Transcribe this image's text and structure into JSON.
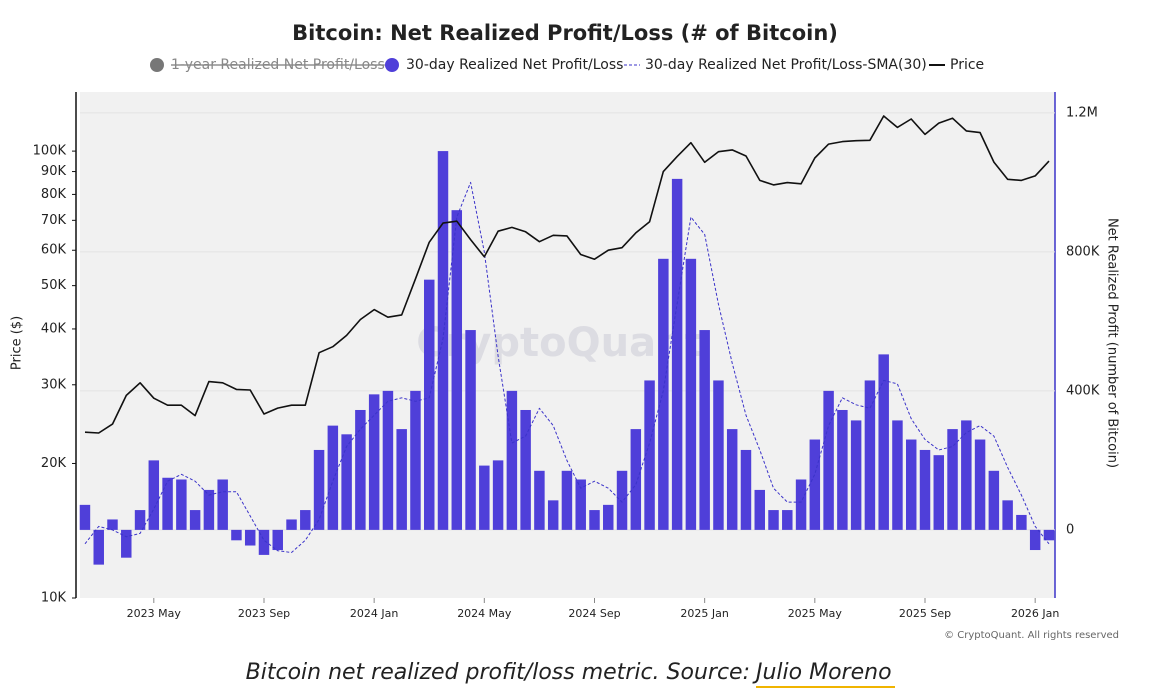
{
  "chart_data": {
    "type": "bar",
    "title": "Bitcoin: Net Realized Profit/Loss (# of Bitcoin)",
    "y_label": "Price ($)",
    "y2_label": "Net Realized Profit (number of Bitcoin)",
    "watermark": "CryptoQuant",
    "credit": "© CryptoQuant. All rights reserved",
    "caption_text": "Bitcoin net realized profit/loss metric. Source:",
    "caption_link": "Julio Moreno",
    "x": [
      2023.125,
      2023.1667,
      2023.2083,
      2023.25,
      2023.2917,
      2023.3333,
      2023.375,
      2023.4167,
      2023.4583,
      2023.5,
      2023.5417,
      2023.5833,
      2023.625,
      2023.6667,
      2023.7083,
      2023.75,
      2023.7917,
      2023.8333,
      2023.875,
      2023.9167,
      2023.9583,
      2024,
      2024.0417,
      2024.0833,
      2024.125,
      2024.1667,
      2024.2083,
      2024.25,
      2024.2917,
      2024.3333,
      2024.375,
      2024.4167,
      2024.4583,
      2024.5,
      2024.5417,
      2024.5833,
      2024.625,
      2024.6667,
      2024.7083,
      2024.75,
      2024.7917,
      2024.8333,
      2024.875,
      2024.9167,
      2024.9583,
      2025,
      2025.0417,
      2025.0833,
      2025.125,
      2025.1667,
      2025.2083,
      2025.25,
      2025.2917,
      2025.3333,
      2025.375,
      2025.4167,
      2025.4583,
      2025.5,
      2025.5417,
      2025.5833,
      2025.625,
      2025.6667,
      2025.7083,
      2025.75,
      2025.7917,
      2025.8333,
      2025.875,
      2025.9167,
      2025.9583,
      2026,
      2026.0417
    ],
    "xlim": [
      2023.11,
      2026.06
    ],
    "xticks": [
      {
        "value": 2023.3333,
        "label": "2023 May"
      },
      {
        "value": 2023.6667,
        "label": "2023 Sep"
      },
      {
        "value": 2024,
        "label": "2024 Jan"
      },
      {
        "value": 2024.3333,
        "label": "2024 May"
      },
      {
        "value": 2024.6667,
        "label": "2024 Sep"
      },
      {
        "value": 2025,
        "label": "2025 Jan"
      },
      {
        "value": 2025.3333,
        "label": "2025 May"
      },
      {
        "value": 2025.6667,
        "label": "2025 Sep"
      },
      {
        "value": 2026,
        "label": "2026 Jan"
      }
    ],
    "ylim": [
      10000,
      135600
    ],
    "log_y": true,
    "yticks": [
      {
        "value": 10000,
        "label": "10K"
      },
      {
        "value": 20000,
        "label": "20K"
      },
      {
        "value": 30000,
        "label": "30K"
      },
      {
        "value": 40000,
        "label": "40K"
      },
      {
        "value": 50000,
        "label": "50K"
      },
      {
        "value": 60000,
        "label": "60K"
      },
      {
        "value": 70000,
        "label": "70K"
      },
      {
        "value": 80000,
        "label": "80K"
      },
      {
        "value": 90000,
        "label": "90K"
      },
      {
        "value": 100000,
        "label": "100K"
      }
    ],
    "y2lim": [
      -196000,
      1260000
    ],
    "y2ticks": [
      0,
      {
        "value": 400000,
        "label": "400K"
      },
      {
        "value": 800000,
        "label": "800K"
      },
      {
        "value": 1200000,
        "label": "1.2M"
      }
    ],
    "series": [
      {
        "name": "1-year Realized Net Profit/Loss",
        "type": "line",
        "color": "#777777",
        "visible": false
      },
      {
        "name": "30-day Realized Net Profit/Loss",
        "type": "bar",
        "axis": "y2",
        "color": "#4f3fd9",
        "values": [
          72000,
          -100000,
          30000,
          -80000,
          57000,
          200000,
          150000,
          145000,
          57000,
          115000,
          145000,
          -30000,
          -45000,
          -72000,
          -58000,
          30000,
          57000,
          230000,
          300000,
          275000,
          345000,
          390000,
          400000,
          290000,
          400000,
          720000,
          1090000,
          920000,
          575000,
          185000,
          200000,
          400000,
          345000,
          170000,
          85000,
          170000,
          145000,
          57000,
          72000,
          170000,
          290000,
          430000,
          780000,
          1010000,
          780000,
          575000,
          430000,
          290000,
          230000,
          115000,
          57000,
          57000,
          145000,
          260000,
          400000,
          345000,
          315000,
          430000,
          505000,
          315000,
          260000,
          230000,
          215000,
          290000,
          315000,
          260000,
          170000,
          85000,
          43000,
          -58000,
          -30000
        ]
      },
      {
        "name": "30-day Realized Net Profit/Loss-SMA(30)",
        "type": "line",
        "axis": "y2",
        "color": "#3b33c9",
        "dashed": true,
        "values": [
          -40000,
          10000,
          0,
          -20000,
          -10000,
          60000,
          140000,
          160000,
          140000,
          100000,
          110000,
          110000,
          40000,
          -30000,
          -60000,
          -65000,
          -30000,
          30000,
          140000,
          240000,
          290000,
          330000,
          370000,
          380000,
          370000,
          380000,
          550000,
          900000,
          1000000,
          800000,
          500000,
          250000,
          270000,
          350000,
          300000,
          200000,
          120000,
          140000,
          120000,
          80000,
          130000,
          250000,
          400000,
          650000,
          900000,
          850000,
          650000,
          480000,
          330000,
          230000,
          120000,
          80000,
          80000,
          160000,
          300000,
          380000,
          360000,
          350000,
          430000,
          420000,
          320000,
          260000,
          230000,
          240000,
          280000,
          300000,
          270000,
          180000,
          100000,
          10000,
          -40000
        ]
      },
      {
        "name": "Price",
        "type": "line",
        "axis": "y",
        "color": "#111111",
        "values": [
          23500,
          23400,
          24500,
          28400,
          30300,
          28000,
          27000,
          27000,
          25600,
          30500,
          30300,
          29300,
          29200,
          25800,
          26600,
          27000,
          27000,
          35400,
          36500,
          38700,
          42000,
          44200,
          42500,
          43000,
          51800,
          62500,
          69000,
          69700,
          63400,
          58000,
          66200,
          67500,
          66000,
          62700,
          64800,
          64600,
          58700,
          57300,
          60000,
          60800,
          65600,
          69500,
          90000,
          97200,
          104400,
          94400,
          99700,
          100600,
          97500,
          86000,
          84000,
          85000,
          84500,
          96500,
          103700,
          105000,
          105500,
          105700,
          119800,
          113000,
          118000,
          109000,
          115500,
          118500,
          111000,
          110000,
          94500,
          86500,
          86000,
          88000,
          95000
        ]
      }
    ],
    "grid": true
  }
}
